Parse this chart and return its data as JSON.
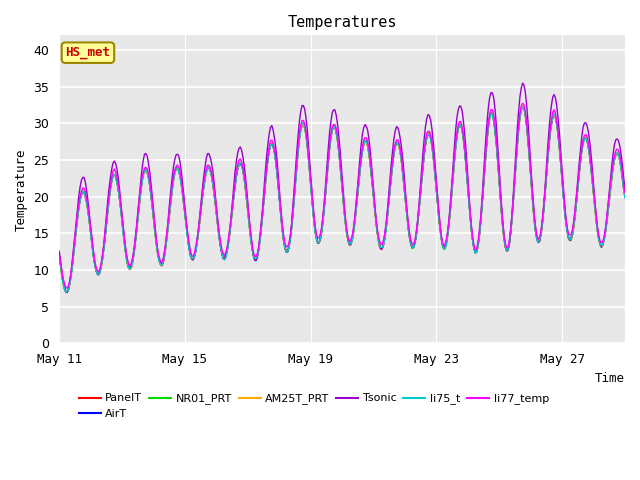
{
  "title": "Temperatures",
  "xlabel": "Time",
  "ylabel": "Temperature",
  "ylim": [
    0,
    42
  ],
  "yticks": [
    0,
    5,
    10,
    15,
    20,
    25,
    30,
    35,
    40
  ],
  "x_tick_days": [
    11,
    15,
    19,
    23,
    27
  ],
  "x_tick_labels": [
    "May 11",
    "May 15",
    "May 19",
    "May 23",
    "May 27"
  ],
  "bg_color": "#e8e8e8",
  "plot_bg_color": "#e8e8e8",
  "fig_color": "#ffffff",
  "grid_color": "#ffffff",
  "series": [
    {
      "name": "PanelT",
      "color": "#ff0000"
    },
    {
      "name": "AirT",
      "color": "#0000ff"
    },
    {
      "name": "NR01_PRT",
      "color": "#00dd00"
    },
    {
      "name": "AM25T_PRT",
      "color": "#ffaa00"
    },
    {
      "name": "Tsonic",
      "color": "#9900cc"
    },
    {
      "name": "li75_t",
      "color": "#00cccc"
    },
    {
      "name": "li77_temp",
      "color": "#ff00ff"
    }
  ],
  "annotation_text": "HS_met",
  "annotation_color": "#cc0000",
  "annotation_bg": "#ffff99",
  "annotation_border": "#998800",
  "legend_ncol_row1": 6,
  "lw": 1.0
}
